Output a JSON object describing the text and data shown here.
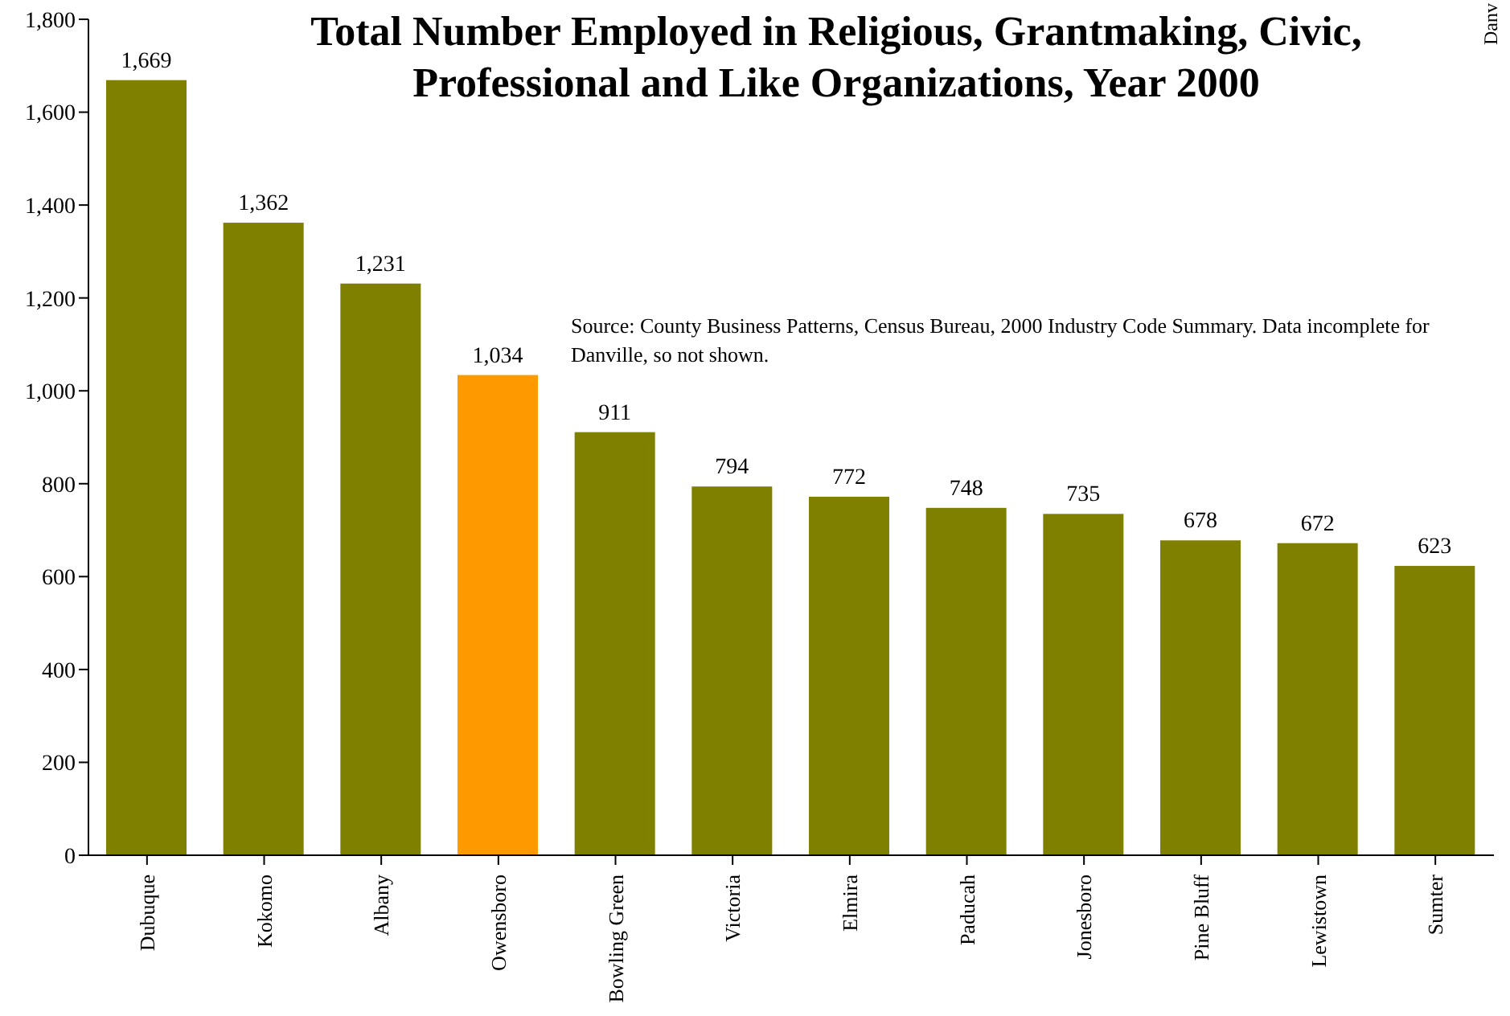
{
  "chart_data": {
    "type": "bar",
    "title": "Total Number Employed in Religious, Grantmaking, Civic, Professional and Like Organizations, Year 2000",
    "categories": [
      "Dubuque",
      "Kokomo",
      "Albany",
      "Owensboro",
      "Bowling Green",
      "Victoria",
      "Elmira",
      "Paducah",
      "Jonesboro",
      "Pine Bluff",
      "Lewistown",
      "Sumter"
    ],
    "values": [
      1669,
      1362,
      1231,
      1034,
      911,
      794,
      772,
      748,
      735,
      678,
      672,
      623
    ],
    "colors": [
      "#808000",
      "#808000",
      "#808000",
      "#ff9900",
      "#808000",
      "#808000",
      "#808000",
      "#808000",
      "#808000",
      "#808000",
      "#808000",
      "#808000"
    ],
    "ylim": [
      0,
      1800
    ],
    "yticks": [
      0,
      {
        "value": 200,
        "label": "200"
      },
      {
        "value": 400,
        "label": "400"
      },
      {
        "value": 600,
        "label": "600"
      },
      {
        "value": 800,
        "label": "800"
      },
      {
        "value": 1000,
        "label": "1,000"
      },
      {
        "value": 1200,
        "label": "1,200"
      },
      {
        "value": 1400,
        "label": "1,400"
      },
      {
        "value": 1600,
        "label": "1,600"
      },
      {
        "value": 1800,
        "label": "1,800"
      }
    ],
    "value_labels": [
      "1,669",
      "1,362",
      "1,231",
      "1,034",
      "911",
      "794",
      "772",
      "748",
      "735",
      "678",
      "672",
      "623"
    ],
    "grid": false,
    "annotations": [
      "Source: County Business Patterns,  Census Bureau,  2000 Industry Code Summary. Data incomplete for Danville, so not shown.",
      "Danv"
    ]
  }
}
